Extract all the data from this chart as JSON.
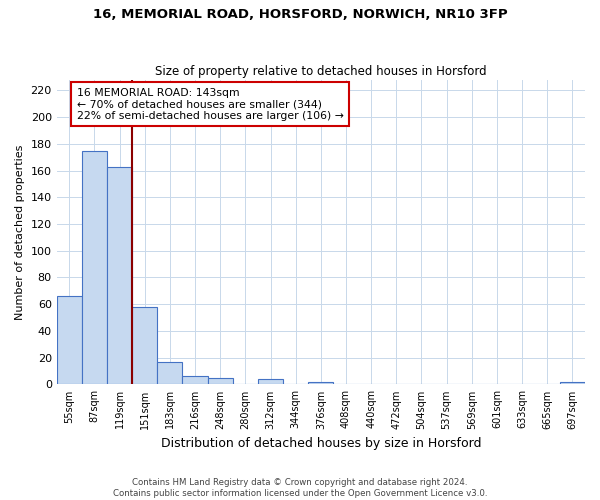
{
  "title1": "16, MEMORIAL ROAD, HORSFORD, NORWICH, NR10 3FP",
  "title2": "Size of property relative to detached houses in Horsford",
  "xlabel": "Distribution of detached houses by size in Horsford",
  "ylabel": "Number of detached properties",
  "bar_labels": [
    "55sqm",
    "87sqm",
    "119sqm",
    "151sqm",
    "183sqm",
    "216sqm",
    "248sqm",
    "280sqm",
    "312sqm",
    "344sqm",
    "376sqm",
    "408sqm",
    "440sqm",
    "472sqm",
    "504sqm",
    "537sqm",
    "569sqm",
    "601sqm",
    "633sqm",
    "665sqm",
    "697sqm"
  ],
  "bar_values": [
    66,
    175,
    163,
    58,
    17,
    6,
    5,
    0,
    4,
    0,
    2,
    0,
    0,
    0,
    0,
    0,
    0,
    0,
    0,
    0,
    2
  ],
  "bar_color": "#c6d9f0",
  "bar_edge_color": "#4472c4",
  "vline_x": 2.5,
  "vline_color": "#8b0000",
  "annotation_title": "16 MEMORIAL ROAD: 143sqm",
  "annotation_line1": "← 70% of detached houses are smaller (344)",
  "annotation_line2": "22% of semi-detached houses are larger (106) →",
  "annotation_box_color": "#ffffff",
  "annotation_box_edge": "#cc0000",
  "ylim": [
    0,
    228
  ],
  "yticks": [
    0,
    20,
    40,
    60,
    80,
    100,
    120,
    140,
    160,
    180,
    200,
    220
  ],
  "footer1": "Contains HM Land Registry data © Crown copyright and database right 2024.",
  "footer2": "Contains public sector information licensed under the Open Government Licence v3.0.",
  "bg_color": "#ffffff",
  "grid_color": "#c8d8ea"
}
